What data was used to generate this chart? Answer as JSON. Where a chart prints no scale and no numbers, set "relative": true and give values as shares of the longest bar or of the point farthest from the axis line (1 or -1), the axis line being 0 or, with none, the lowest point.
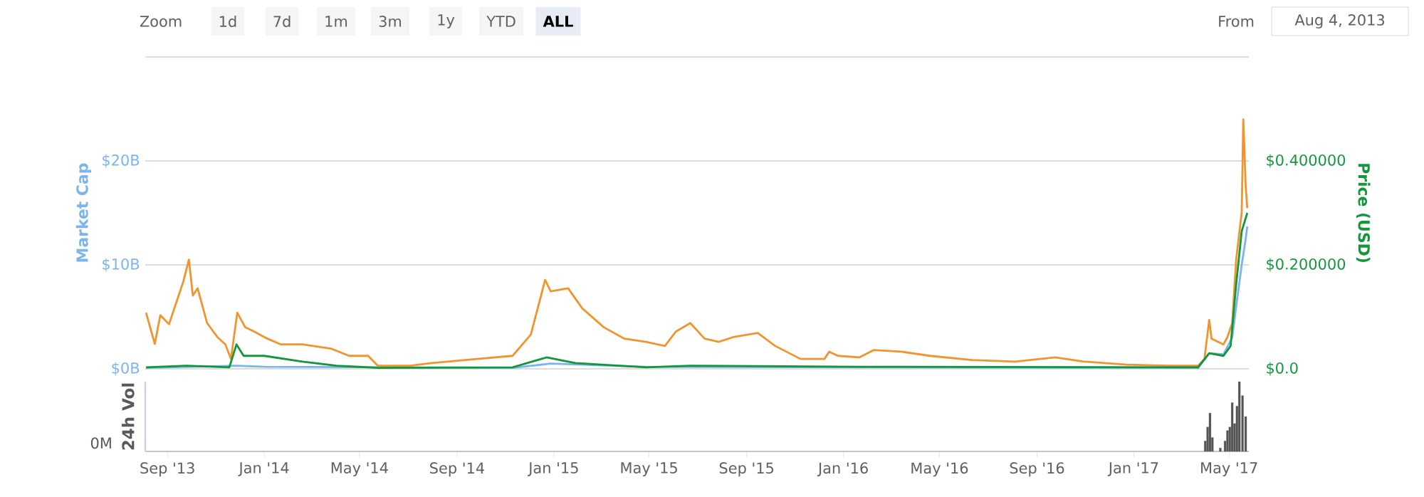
{
  "chart_data": [
    {
      "type": "line",
      "ylabel": "Market Cap",
      "y2label": "Price (USD)",
      "annotations": [
        "Zoom",
        "1d",
        "7d",
        "1m",
        "3m",
        "1y",
        "YTD",
        "ALL",
        "From",
        "Aug 4, 2013"
      ],
      "xlim": [
        "2013-08-04",
        "2017-05-26"
      ],
      "ylim": [
        0,
        30
      ],
      "yticks": [
        {
          "value": 0,
          "label": "$0B"
        },
        {
          "value": 10,
          "label": "$10B"
        },
        {
          "value": 20,
          "label": "$20B"
        },
        {
          "value": 30,
          "label": null
        }
      ],
      "y2lim": [
        0,
        0.6
      ],
      "y2ticks": [
        {
          "value": 0,
          "label": "$0.0"
        },
        {
          "value": 0.2,
          "label": "$0.200000"
        },
        {
          "value": 0.4,
          "label": "$0.400000"
        },
        {
          "value": 0.6,
          "label": null
        }
      ],
      "grid": "y",
      "tick_labels": "y",
      "series": [
        {
          "color": "#f0952e",
          "axis": "y2",
          "x": [
            "2013-08-05",
            "2013-08-16",
            "2013-08-23",
            "2013-09-03",
            "2013-09-21",
            "2013-09-28",
            "2013-10-03",
            "2013-10-09",
            "2013-10-21",
            "2013-11-03",
            "2013-11-13",
            "2013-11-20",
            "2013-11-28",
            "2013-12-08",
            "2013-12-19",
            "2014-01-05",
            "2014-01-22",
            "2014-02-18",
            "2014-03-26",
            "2014-04-18",
            "2014-05-12",
            "2014-05-24",
            "2014-07-04",
            "2014-07-31",
            "2014-09-26",
            "2014-11-10",
            "2014-12-03",
            "2014-12-21",
            "2014-12-28",
            "2015-01-19",
            "2015-02-06",
            "2015-03-05",
            "2015-03-31",
            "2015-04-27",
            "2015-05-21",
            "2015-06-04",
            "2015-06-22",
            "2015-07-10",
            "2015-07-28",
            "2015-08-15",
            "2015-09-15",
            "2015-10-07",
            "2015-11-08",
            "2015-12-08",
            "2015-12-14",
            "2015-12-25",
            "2016-01-21",
            "2016-02-08",
            "2016-03-14",
            "2016-04-19",
            "2016-06-11",
            "2016-08-04",
            "2016-09-24",
            "2016-10-30",
            "2016-12-23",
            "2017-02-15",
            "2017-03-23",
            "2017-03-31",
            "2017-04-06",
            "2017-04-09",
            "2017-04-24",
            "2017-04-29",
            "2017-05-05",
            "2017-05-10",
            "2017-05-17",
            "2017-05-19",
            "2017-05-22",
            "2017-05-24"
          ],
          "values": [
            0.108,
            0.048,
            0.103,
            0.086,
            0.168,
            0.21,
            0.141,
            0.155,
            0.088,
            0.061,
            0.047,
            0.019,
            0.108,
            0.08,
            0.072,
            0.058,
            0.047,
            0.047,
            0.039,
            0.025,
            0.025,
            0.006,
            0.006,
            0.011,
            0.019,
            0.025,
            0.066,
            0.171,
            0.149,
            0.155,
            0.116,
            0.08,
            0.058,
            0.052,
            0.044,
            0.072,
            0.088,
            0.058,
            0.052,
            0.061,
            0.069,
            0.044,
            0.019,
            0.019,
            0.033,
            0.025,
            0.022,
            0.036,
            0.033,
            0.025,
            0.017,
            0.014,
            0.022,
            0.014,
            0.008,
            0.006,
            0.006,
            0.019,
            0.094,
            0.058,
            0.047,
            0.061,
            0.088,
            0.21,
            0.301,
            0.48,
            0.351,
            0.309
          ]
        },
        {
          "color": "#7cb5ec",
          "axis": "y",
          "x": [
            "2013-08-05",
            "2013-11-27",
            "2014-01-01",
            "2014-11-10",
            "2014-12-28",
            "2015-04-27",
            "2017-03-23",
            "2017-04-06",
            "2017-04-24",
            "2017-05-05",
            "2017-05-10",
            "2017-05-17",
            "2017-05-22",
            "2017-05-24"
          ],
          "values": [
            0.1,
            0.3,
            0.2,
            0.1,
            0.5,
            0.2,
            0.1,
            1.5,
            1.4,
            3.0,
            6.0,
            10.0,
            12.5,
            13.7
          ]
        },
        {
          "color": "#13963c",
          "axis": "y2",
          "x": [
            "2013-08-05",
            "2013-09-25",
            "2013-11-18",
            "2013-11-27",
            "2013-12-06",
            "2014-01-01",
            "2014-02-18",
            "2014-04-02",
            "2014-05-24",
            "2014-11-10",
            "2014-12-23",
            "2015-01-28",
            "2015-04-27",
            "2015-06-22",
            "2016-01-21",
            "2017-03-23",
            "2017-04-06",
            "2017-04-24",
            "2017-05-03",
            "2017-05-10",
            "2017-05-17",
            "2017-05-24"
          ],
          "values": [
            0.003,
            0.006,
            0.003,
            0.047,
            0.025,
            0.025,
            0.014,
            0.006,
            0.002,
            0.003,
            0.022,
            0.011,
            0.003,
            0.006,
            0.004,
            0.003,
            0.03,
            0.025,
            0.044,
            0.163,
            0.265,
            0.3
          ]
        }
      ]
    },
    {
      "type": "bar",
      "ylabel": "24h Vol",
      "annotations": [
        "0M"
      ],
      "relative": true,
      "tick_labels": "x",
      "color": "#555555",
      "xlim": [
        "2013-08-04",
        "2017-05-26"
      ],
      "xticks": [
        {
          "value": "2013-09-01",
          "label": "Sep '13"
        },
        {
          "value": "2014-01-01",
          "label": "Jan '14"
        },
        {
          "value": "2014-05-01",
          "label": "May '14"
        },
        {
          "value": "2014-09-01",
          "label": "Sep '14"
        },
        {
          "value": "2015-01-01",
          "label": "Jan '15"
        },
        {
          "value": "2015-05-01",
          "label": "May '15"
        },
        {
          "value": "2015-09-01",
          "label": "Sep '15"
        },
        {
          "value": "2016-01-01",
          "label": "Jan '16"
        },
        {
          "value": "2016-05-01",
          "label": "May '16"
        },
        {
          "value": "2016-09-01",
          "label": "Sep '16"
        },
        {
          "value": "2017-01-01",
          "label": "Jan '17"
        },
        {
          "value": "2017-05-01",
          "label": "May '17"
        }
      ],
      "x": [
        "2017-04-01",
        "2017-04-04",
        "2017-04-07",
        "2017-04-10",
        "2017-04-20",
        "2017-04-26",
        "2017-04-29",
        "2017-05-02",
        "2017-05-05",
        "2017-05-08",
        "2017-05-11",
        "2017-05-14",
        "2017-05-18",
        "2017-05-22"
      ],
      "values": [
        0.15,
        0.35,
        0.55,
        0.2,
        0.05,
        0.15,
        0.3,
        0.35,
        0.7,
        0.4,
        0.65,
        1.0,
        0.8,
        0.5
      ]
    }
  ]
}
